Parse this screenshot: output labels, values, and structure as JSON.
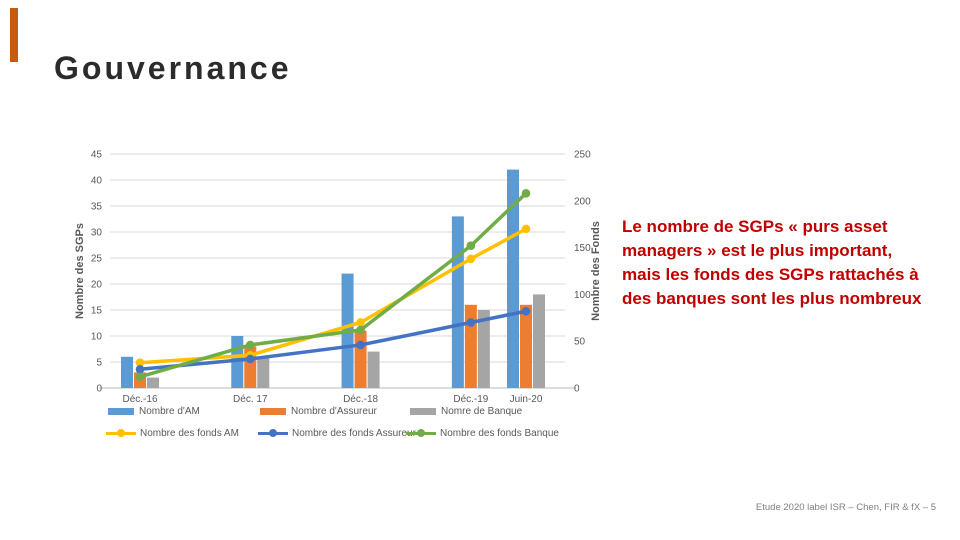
{
  "slide": {
    "title": "Gouvernance",
    "accent_color": "#C55A11",
    "annotation_text": "Le nombre de SGPs « purs asset managers » est le plus important, mais les fonds des SGPs rattachés à des banques sont les plus nombreux",
    "annotation_color": "#C00000",
    "footer": "Etude 2020 label ISR – Chen, FIR & fX – 5"
  },
  "chart_data": {
    "type": "bar",
    "subtype": "combo bar+line, dual axis",
    "categories": [
      "Déc.-16",
      "Déc. 17",
      "Déc.-18",
      "Déc.-19",
      "Juin-20"
    ],
    "x_months_offset": [
      0,
      12,
      24,
      36,
      42
    ],
    "bar_series": [
      {
        "name": "Nombre d'AM",
        "color": "#5B9BD5",
        "axis": "left",
        "values": [
          6,
          10,
          22,
          33,
          42
        ]
      },
      {
        "name": "Nombre d'Assureur",
        "color": "#ED7D31",
        "axis": "left",
        "values": [
          3,
          8,
          11,
          16,
          16
        ]
      },
      {
        "name": "Nomre de Banque",
        "color": "#A5A5A5",
        "axis": "left",
        "values": [
          2,
          6,
          7,
          15,
          18
        ]
      }
    ],
    "line_series": [
      {
        "name": "Nombre des fonds AM",
        "color": "#FFC000",
        "axis": "right",
        "values": [
          27,
          35,
          70,
          138,
          170
        ]
      },
      {
        "name": "Nombre des fonds Assureur",
        "color": "#4472C4",
        "axis": "right",
        "values": [
          20,
          31,
          46,
          70,
          82
        ]
      },
      {
        "name": "Nombre des fonds Banque",
        "color": "#70AD47",
        "axis": "right",
        "values": [
          12,
          46,
          62,
          152,
          208
        ]
      }
    ],
    "left_axis": {
      "title": "Nombre des SGPs",
      "min": 0,
      "max": 45,
      "step": 5,
      "ticks": [
        0,
        5,
        10,
        15,
        20,
        25,
        30,
        35,
        40,
        45
      ]
    },
    "right_axis": {
      "title": "Nombre des Fonds",
      "min": 0,
      "max": 250,
      "step": 50,
      "ticks": [
        0,
        50,
        100,
        150,
        200,
        250
      ]
    },
    "grid": true,
    "legend_position": "bottom",
    "grid_color": "#D9D9D9",
    "axis_text_color": "#595959"
  }
}
